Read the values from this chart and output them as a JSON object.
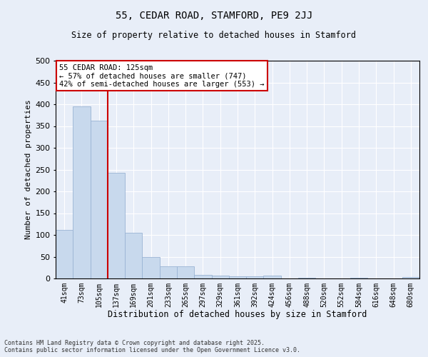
{
  "title1": "55, CEDAR ROAD, STAMFORD, PE9 2JJ",
  "title2": "Size of property relative to detached houses in Stamford",
  "xlabel": "Distribution of detached houses by size in Stamford",
  "ylabel": "Number of detached properties",
  "categories": [
    "41sqm",
    "73sqm",
    "105sqm",
    "137sqm",
    "169sqm",
    "201sqm",
    "233sqm",
    "265sqm",
    "297sqm",
    "329sqm",
    "361sqm",
    "392sqm",
    "424sqm",
    "456sqm",
    "488sqm",
    "520sqm",
    "552sqm",
    "584sqm",
    "616sqm",
    "648sqm",
    "680sqm"
  ],
  "values": [
    112,
    395,
    362,
    243,
    105,
    50,
    28,
    28,
    9,
    7,
    5,
    5,
    7,
    0,
    1,
    0,
    0,
    2,
    0,
    0,
    3
  ],
  "bar_color": "#c8d9ed",
  "bar_edge_color": "#9ab4d4",
  "red_line_x": 2.5,
  "annotation_line1": "55 CEDAR ROAD: 125sqm",
  "annotation_line2": "← 57% of detached houses are smaller (747)",
  "annotation_line3": "42% of semi-detached houses are larger (553) →",
  "annotation_box_color": "#ffffff",
  "annotation_box_edge": "#cc0000",
  "footer1": "Contains HM Land Registry data © Crown copyright and database right 2025.",
  "footer2": "Contains public sector information licensed under the Open Government Licence v3.0.",
  "bg_color": "#e8eef8",
  "plot_bg_color": "#e8eef8",
  "grid_color": "#ffffff",
  "ylim": [
    0,
    500
  ],
  "yticks": [
    0,
    50,
    100,
    150,
    200,
    250,
    300,
    350,
    400,
    450,
    500
  ]
}
